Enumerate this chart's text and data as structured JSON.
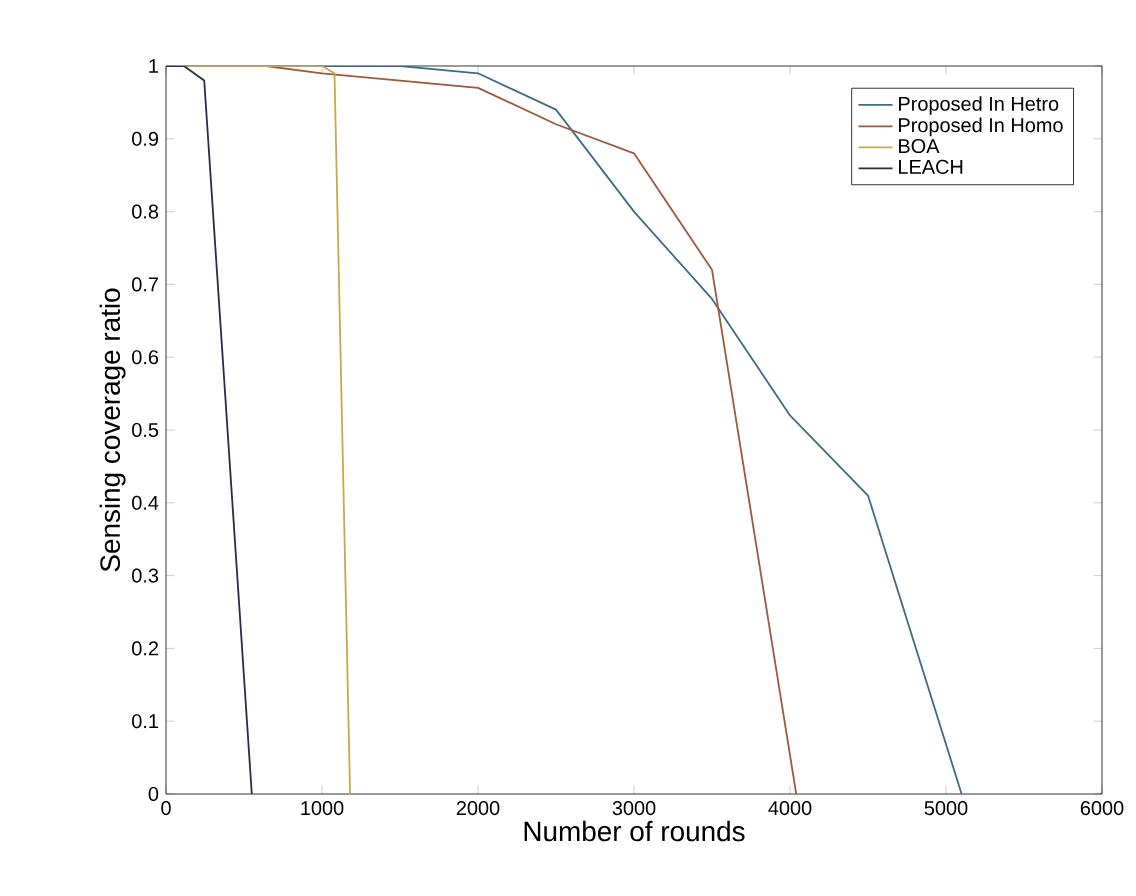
{
  "chart_data": {
    "type": "line",
    "xlabel": "Number of rounds",
    "ylabel": "Sensing coverage ratio",
    "xlim": [
      0,
      6000
    ],
    "xticks": [
      0,
      1000,
      2000,
      3000,
      4000,
      5000,
      6000
    ],
    "ylim": [
      0,
      1
    ],
    "yticks": [
      0,
      0.1,
      0.2,
      0.3,
      0.4,
      0.5,
      0.6,
      0.7,
      0.8,
      0.9,
      1
    ],
    "legend": "top right",
    "grid": false,
    "marker": "none",
    "line_style": "solid",
    "series": [
      {
        "name": "Proposed In Hetro",
        "color": "#3a6d8c",
        "x": [
          0,
          1000,
          1500,
          2000,
          2500,
          3000,
          3500,
          4000,
          4500,
          5100
        ],
        "values": [
          1,
          1,
          1,
          0.99,
          0.94,
          0.8,
          0.68,
          0.52,
          0.41,
          0
        ]
      },
      {
        "name": "Proposed In Homo",
        "color": "#a0573a",
        "x": [
          0,
          640,
          1000,
          2000,
          2500,
          3000,
          3500,
          4040
        ],
        "values": [
          1,
          1,
          0.99,
          0.97,
          0.92,
          0.88,
          0.72,
          0
        ]
      },
      {
        "name": "BOA",
        "color": "#c8a84a",
        "x": [
          0,
          1000,
          1080,
          1180
        ],
        "values": [
          1,
          1,
          0.99,
          0
        ]
      },
      {
        "name": "LEACH",
        "color": "#2b2b4a",
        "x": [
          0,
          115,
          245,
          550
        ],
        "values": [
          1,
          1,
          0.98,
          0
        ]
      }
    ]
  }
}
